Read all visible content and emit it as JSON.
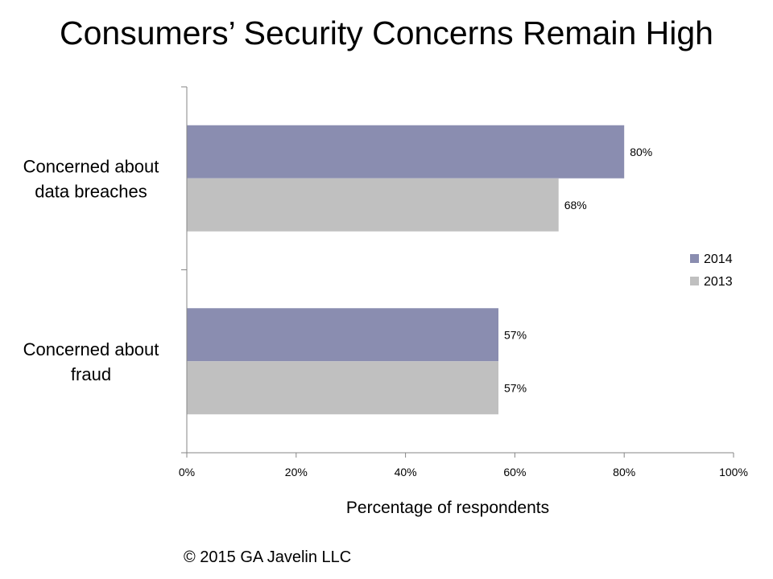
{
  "chart_data": {
    "type": "bar",
    "orientation": "horizontal",
    "title": "Consumers’ Security Concerns Remain High",
    "categories": [
      [
        "Concerned about",
        "data breaches"
      ],
      [
        "Concerned about",
        "fraud"
      ]
    ],
    "series": [
      {
        "name": "2014",
        "color": "#8a8db0",
        "values": [
          80,
          57
        ],
        "labels": [
          "80%",
          "57%"
        ]
      },
      {
        "name": "2013",
        "color": "#c0c0c0",
        "values": [
          68,
          57
        ],
        "labels": [
          "68%",
          "57%"
        ]
      }
    ],
    "xlabel": "Percentage of respondents",
    "ylabel": "",
    "xlim": [
      0,
      100
    ],
    "xticks": [
      0,
      20,
      40,
      60,
      80,
      100
    ],
    "xtick_labels": [
      "0%",
      "20%",
      "40%",
      "60%",
      "80%",
      "100%"
    ],
    "legend_position": "right",
    "grid": false
  },
  "footer": {
    "copyright": "© 2015 GA Javelin LLC"
  }
}
